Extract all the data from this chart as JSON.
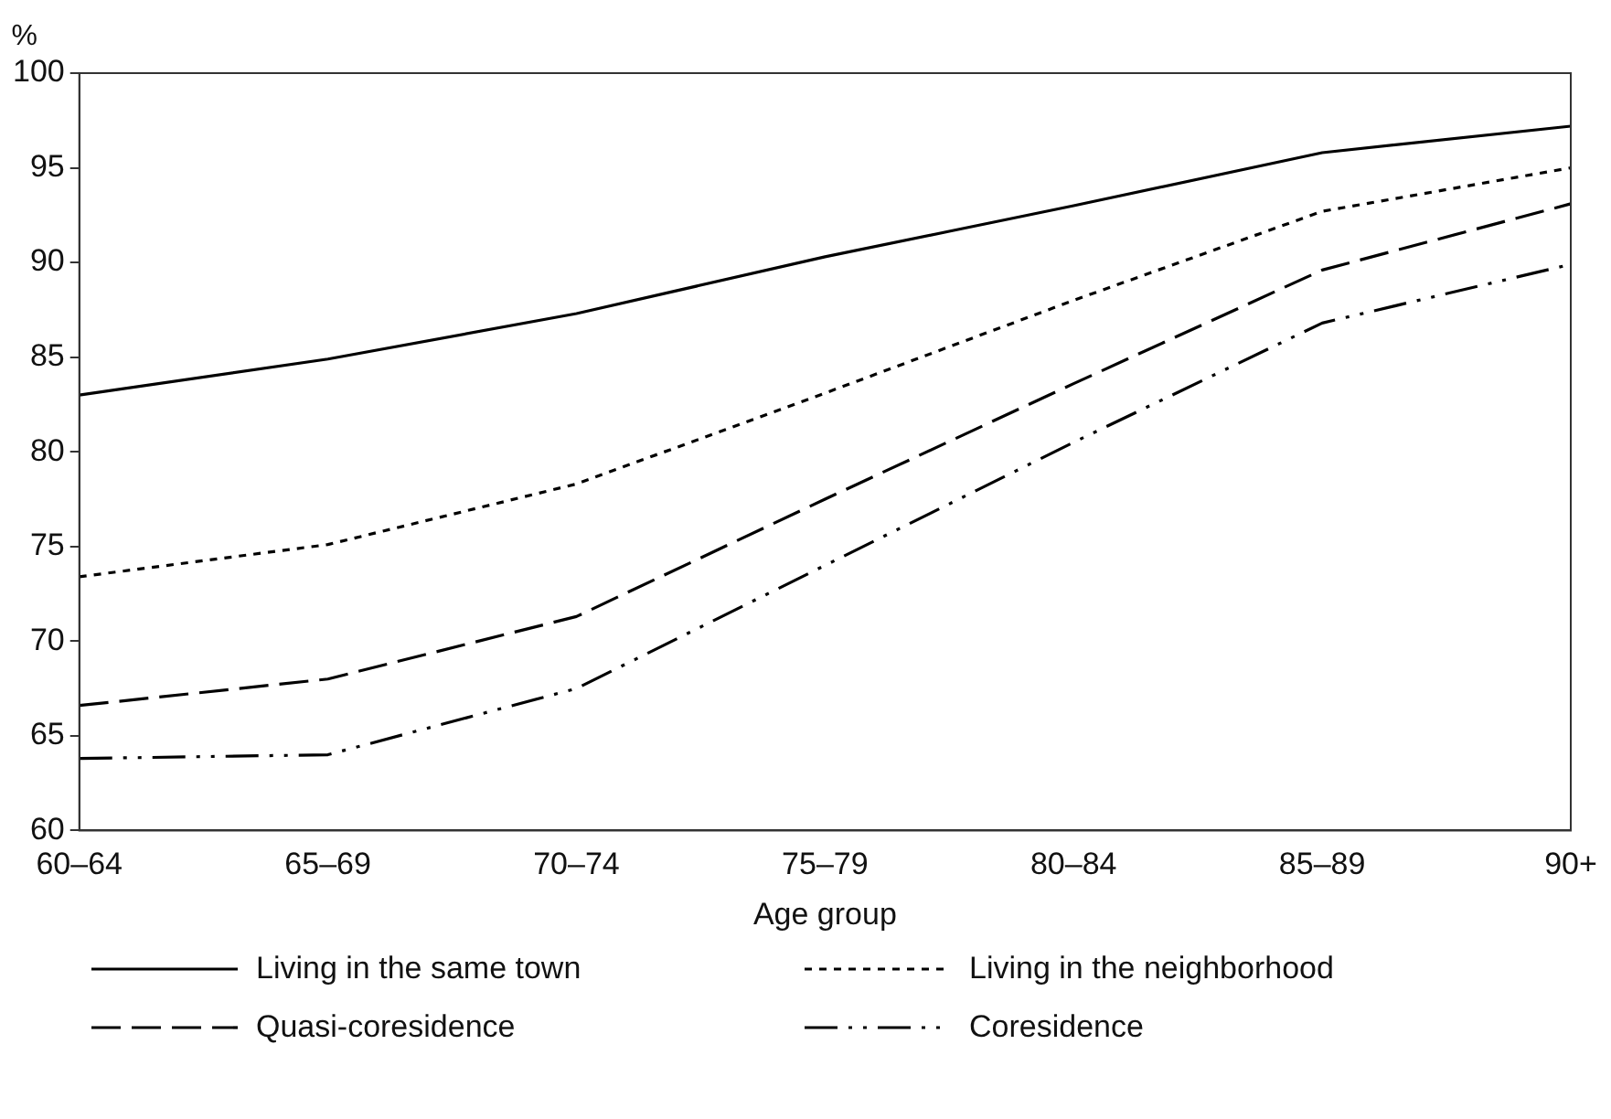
{
  "chart_data": {
    "type": "line",
    "ylabel": "%",
    "xlabel": "Age group",
    "categories": [
      "60–64",
      "65–69",
      "70–74",
      "75–79",
      "80–84",
      "85–89",
      "90+"
    ],
    "ylim": [
      60,
      100
    ],
    "yticks": [
      60,
      65,
      70,
      75,
      80,
      85,
      90,
      95,
      100
    ],
    "grid": false,
    "legend": "bottom",
    "marker": "none",
    "series": [
      {
        "name": "Living in the same town",
        "color": "#000000",
        "line_style": "solid",
        "values": [
          83,
          84.9,
          87.3,
          90.3,
          93,
          95.8,
          97.2
        ]
      },
      {
        "name": "Living in the neighborhood",
        "color": "#000000",
        "line_style": "dotted",
        "values": [
          73.4,
          75.1,
          78.3,
          83.1,
          88,
          92.7,
          95
        ]
      },
      {
        "name": "Quasi-coresidence",
        "color": "#000000",
        "line_style": "dashed",
        "values": [
          66.6,
          68,
          71.3,
          77.5,
          83.6,
          89.6,
          93.1
        ]
      },
      {
        "name": "Coresidence",
        "color": "#000000",
        "line_style": "dashdot",
        "values": [
          63.8,
          64,
          67.5,
          74,
          80.5,
          86.8,
          89.9
        ]
      }
    ]
  }
}
